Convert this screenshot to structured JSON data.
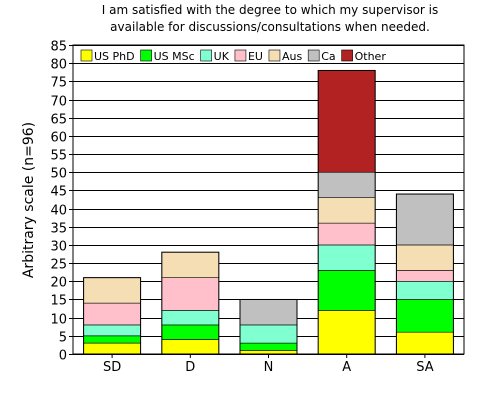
{
  "chart_data": {
    "type": "bar",
    "stacked": true,
    "title": [
      "I am satisfied with the degree to which my supervisor is",
      "available for discussions/consultations when needed."
    ],
    "ylabel": "Arbitrary scale (n=96)",
    "xlabel": "",
    "categories": [
      "SD",
      "D",
      "N",
      "A",
      "SA"
    ],
    "ylim": [
      0,
      85
    ],
    "yticks": [
      0,
      5,
      10,
      15,
      20,
      25,
      30,
      35,
      40,
      45,
      50,
      55,
      60,
      65,
      70,
      75,
      80,
      85
    ],
    "grid": "horizontal",
    "legend_placement": "top-left",
    "series": [
      {
        "name": "US PhD",
        "color": "#ffff00",
        "values": [
          3,
          4,
          1,
          12,
          6
        ]
      },
      {
        "name": "US MSc",
        "color": "#00ff00",
        "values": [
          2,
          4,
          2,
          11,
          9
        ]
      },
      {
        "name": "UK",
        "color": "#80ffd0",
        "values": [
          3,
          4,
          5,
          7,
          5
        ]
      },
      {
        "name": "EU",
        "color": "#ffc0cb",
        "values": [
          6,
          9,
          0,
          6,
          3
        ]
      },
      {
        "name": "Aus",
        "color": "#f5deb3",
        "values": [
          7,
          7,
          0,
          7,
          7
        ]
      },
      {
        "name": "Ca",
        "color": "#c0c0c0",
        "values": [
          0,
          0,
          7,
          7,
          14
        ]
      },
      {
        "name": "Other",
        "color": "#b22222",
        "values": [
          0,
          0,
          0,
          28,
          0
        ]
      }
    ]
  }
}
